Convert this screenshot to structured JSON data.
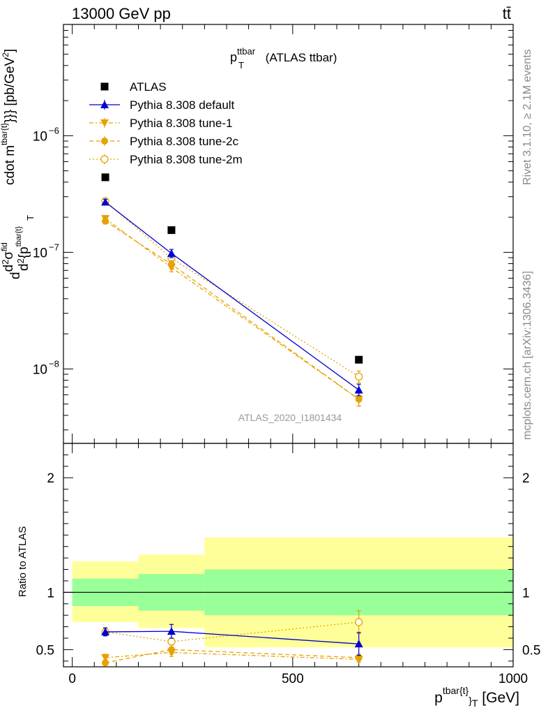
{
  "header": {
    "process": "13000 GeV pp",
    "final_state": "tt̄"
  },
  "side_labels": {
    "rivet": "Rivet 3.1.10, ≥ 2.1M events",
    "mcplots": "mcplots.cern.ch [arXiv:1306.3436]"
  },
  "watermark": "ATLAS_2020_I1801434",
  "colors": {
    "data": "#000000",
    "default": "#0000cc",
    "tunes": "#e6a200",
    "band_inner": "#99ff99",
    "band_outer": "#ffff99"
  },
  "chart_data": [
    {
      "type": "scatter",
      "panel": "main",
      "title_main": "p",
      "title_sup": "ttbar",
      "title_sub": "T",
      "title_suffix": " (ATLAS ttbar)",
      "ylabel_parts": {
        "d": "d",
        "num": "d",
        "num_sup": "2",
        "sigma": "σ",
        "sigma_sup": "fid",
        "den_d": "d",
        "den_sup": "2",
        "den_rest": "{p",
        "den_sub": "T",
        "den_sub_sup": "tbar{t}",
        "tail": "cdot m",
        "tail_sup": "tbar{t}",
        "tail_end": "}}} [pb/GeV",
        "tail_end_sup": "2",
        "close": "]"
      },
      "yscale": "log",
      "ylim": [
        2.3e-09,
        9e-06
      ],
      "xlim": [
        -20,
        1000
      ],
      "yticks": [
        {
          "value": 1e-08,
          "base": "10",
          "exp": "−8"
        },
        {
          "value": 1e-07,
          "base": "10",
          "exp": "−7"
        },
        {
          "value": 1e-06,
          "base": "10",
          "exp": "−6"
        }
      ],
      "legend": {
        "position": "top-left",
        "entries": [
          "ATLAS",
          "Pythia 8.308 default",
          "Pythia 8.308 tune-1",
          "Pythia 8.308 tune-2c",
          "Pythia 8.308 tune-2m"
        ]
      },
      "series": [
        {
          "name": "ATLAS",
          "style": "data",
          "x": [
            75,
            225,
            650
          ],
          "y": [
            4.4e-07,
            1.55e-07,
            1.2e-08
          ]
        },
        {
          "name": "Pythia 8.308 default",
          "style": "default",
          "x": [
            75,
            225,
            650
          ],
          "y": [
            2.7e-07,
            9.8e-08,
            6.6e-09
          ],
          "err": [
            [
              2.55e-07,
              2.85e-07
            ],
            [
              9e-08,
              1.06e-07
            ],
            [
              5.9e-09,
              7.4e-09
            ]
          ]
        },
        {
          "name": "Pythia 8.308 tune-1",
          "style": "tune1",
          "x": [
            75,
            225,
            650
          ],
          "y": [
            1.95e-07,
            7.4e-08,
            5.5e-09
          ],
          "err": [
            [
              1.85e-07,
              2.05e-07
            ],
            [
              6.8e-08,
              8e-08
            ],
            [
              4.8e-09,
              6.2e-09
            ]
          ]
        },
        {
          "name": "Pythia 8.308 tune-2c",
          "style": "tune2c",
          "x": [
            75,
            225,
            650
          ],
          "y": [
            1.85e-07,
            7.9e-08,
            5.5e-09
          ],
          "err": [
            [
              1.75e-07,
              1.95e-07
            ],
            [
              7.3e-08,
              8.5e-08
            ],
            [
              4.8e-09,
              6.2e-09
            ]
          ]
        },
        {
          "name": "Pythia 8.308 tune-2m",
          "style": "tune2m",
          "x": [
            75,
            225,
            650
          ],
          "y": [
            2.75e-07,
            8.9e-08,
            8.6e-09
          ],
          "err": [
            [
              2.6e-07,
              2.9e-07
            ],
            [
              8.3e-08,
              9.5e-08
            ],
            [
              7.6e-09,
              9.6e-09
            ]
          ]
        }
      ]
    },
    {
      "type": "scatter",
      "panel": "ratio",
      "ylabel": "Ratio to ATLAS",
      "xlabel_main": "p",
      "xlabel_sup": "tbar{t}",
      "xlabel_sub": "}",
      "xlabel_sub2": "T",
      "xlabel_unit": " [GeV]",
      "xlim": [
        -20,
        1000
      ],
      "ylim": [
        0.35,
        2.3
      ],
      "xticks": [
        0,
        500,
        1000
      ],
      "yticks": [
        0.5,
        1,
        2
      ],
      "bands": [
        {
          "x": [
            0,
            150
          ],
          "inner": [
            0.88,
            1.12
          ],
          "outer": [
            0.74,
            1.27
          ]
        },
        {
          "x": [
            150,
            300
          ],
          "inner": [
            0.84,
            1.16
          ],
          "outer": [
            0.69,
            1.33
          ]
        },
        {
          "x": [
            300,
            1000
          ],
          "inner": [
            0.8,
            1.2
          ],
          "outer": [
            0.52,
            1.48
          ]
        }
      ],
      "series": [
        {
          "name": "Pythia 8.308 default",
          "style": "default",
          "x": [
            75,
            225,
            650
          ],
          "y": [
            0.655,
            0.66,
            0.55
          ],
          "err": [
            [
              0.62,
              0.69
            ],
            [
              0.6,
              0.72
            ],
            [
              0.45,
              0.65
            ]
          ]
        },
        {
          "name": "Pythia 8.308 tune-1",
          "style": "tune1",
          "x": [
            75,
            225,
            650
          ],
          "y": [
            0.43,
            0.475,
            0.415
          ],
          "err": [
            [
              0.4,
              0.46
            ],
            [
              0.44,
              0.51
            ],
            [
              0.39,
              0.44
            ]
          ]
        },
        {
          "name": "Pythia 8.308 tune-2c",
          "style": "tune2c",
          "x": [
            75,
            225,
            650
          ],
          "y": [
            0.385,
            0.5,
            0.43
          ],
          "err": [
            [
              0.36,
              0.41
            ],
            [
              0.46,
              0.54
            ],
            [
              0.4,
              0.46
            ]
          ]
        },
        {
          "name": "Pythia 8.308 tune-2m",
          "style": "tune2m",
          "x": [
            75,
            225,
            650
          ],
          "y": [
            0.655,
            0.57,
            0.74
          ],
          "err": [
            [
              0.62,
              0.69
            ],
            [
              0.54,
              0.6
            ],
            [
              0.64,
              0.84
            ]
          ]
        }
      ]
    }
  ]
}
